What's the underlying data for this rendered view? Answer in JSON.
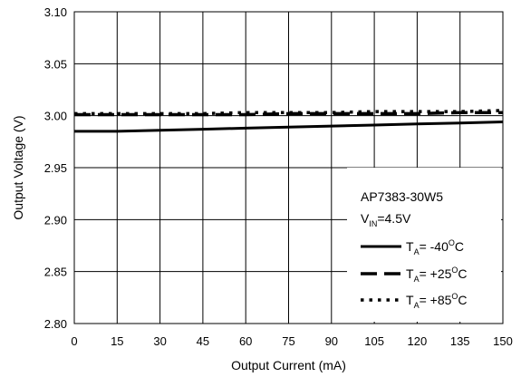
{
  "chart_data": {
    "type": "line",
    "xlabel": "Output Current (mA)",
    "ylabel": "Output Voltage (V)",
    "xlim": [
      0,
      150
    ],
    "ylim": [
      2.8,
      3.1
    ],
    "x_ticks": [
      "0",
      "15",
      "30",
      "45",
      "60",
      "75",
      "90",
      "105",
      "120",
      "135",
      "150"
    ],
    "y_ticks": [
      "2.80",
      "2.85",
      "2.90",
      "2.95",
      "3.00",
      "3.05",
      "3.10"
    ],
    "grid": true,
    "legend_position": "bottom-right",
    "annotation": {
      "device": "AP7383-30W5",
      "vin_main": "V",
      "vin_sub": "IN",
      "vin_rest": "=4.5V"
    },
    "series": [
      {
        "name": "TA= -40OC",
        "label_main": "T",
        "label_sub": "A",
        "label_mid": "= -40",
        "label_sup": "O",
        "label_end": "C",
        "line_style": "solid",
        "x": [
          0,
          15,
          30,
          45,
          60,
          75,
          90,
          105,
          120,
          135,
          150
        ],
        "values": [
          2.985,
          2.985,
          2.986,
          2.987,
          2.988,
          2.989,
          2.99,
          2.991,
          2.992,
          2.993,
          2.994
        ]
      },
      {
        "name": "TA= +25OC",
        "label_main": "T",
        "label_sub": "A",
        "label_mid": "= +25",
        "label_sup": "O",
        "label_end": "C",
        "line_style": "dashed",
        "x": [
          0,
          15,
          30,
          45,
          60,
          75,
          90,
          105,
          120,
          135,
          150
        ],
        "values": [
          3.001,
          3.001,
          3.001,
          3.001,
          3.001,
          3.002,
          3.002,
          3.002,
          3.002,
          3.003,
          3.003
        ]
      },
      {
        "name": "TA= +85OC",
        "label_main": "T",
        "label_sub": "A",
        "label_mid": "= +85",
        "label_sup": "O",
        "label_end": "C",
        "line_style": "dotted",
        "x": [
          0,
          15,
          30,
          45,
          60,
          75,
          90,
          105,
          120,
          135,
          150
        ],
        "values": [
          3.002,
          3.002,
          3.002,
          3.002,
          3.003,
          3.003,
          3.003,
          3.004,
          3.004,
          3.004,
          3.005
        ]
      }
    ],
    "colors": {
      "line": "#000000",
      "grid": "#000000",
      "background": "#ffffff"
    }
  }
}
